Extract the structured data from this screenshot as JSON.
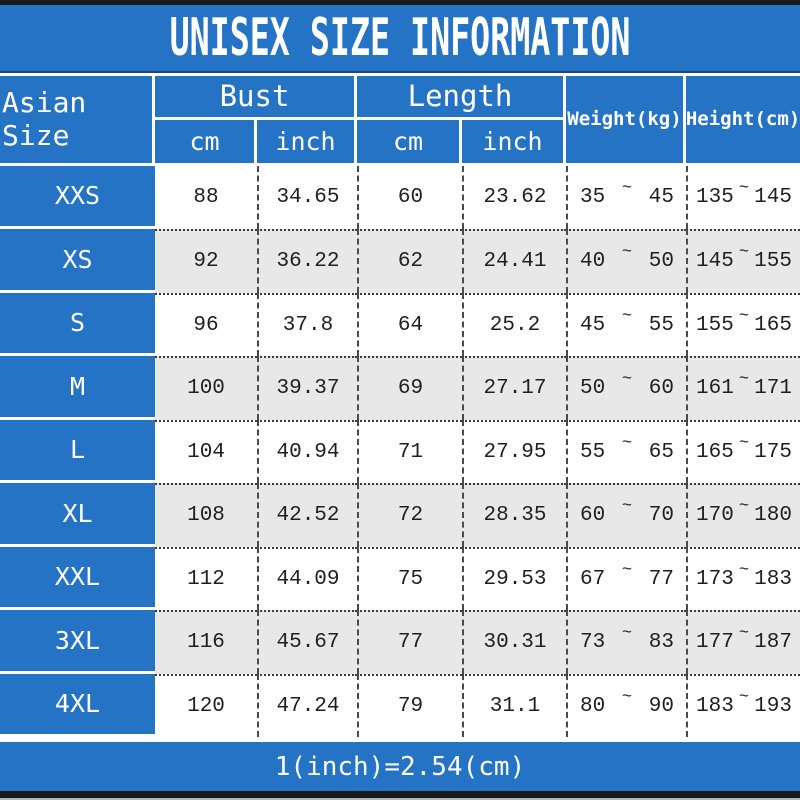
{
  "page": {
    "title": "UNISEX SIZE INFORMATION",
    "footer_note": "1(inch)=2.54(cm)",
    "tilde": "~"
  },
  "header": {
    "asian_size": "Asian Size",
    "bust": "Bust",
    "length": "Length",
    "bust_cm": "cm",
    "bust_inch": "inch",
    "length_cm": "cm",
    "length_inch": "inch",
    "weight": "Weight(kg)",
    "height": "Height(cm)"
  },
  "chart_data": {
    "type": "table",
    "title": "UNISEX SIZE INFORMATION",
    "columns": [
      "Asian Size",
      "Bust cm",
      "Bust inch",
      "Length cm",
      "Length inch",
      "Weight(kg) min",
      "Weight(kg) max",
      "Height(cm) min",
      "Height(cm) max"
    ],
    "rows": [
      [
        "XXS",
        "88",
        "34.65",
        "60",
        "23.62",
        "35",
        "45",
        "135",
        "145"
      ],
      [
        "XS",
        "92",
        "36.22",
        "62",
        "24.41",
        "40",
        "50",
        "145",
        "155"
      ],
      [
        "S",
        "96",
        "37.8",
        "64",
        "25.2",
        "45",
        "55",
        "155",
        "165"
      ],
      [
        "M",
        "100",
        "39.37",
        "69",
        "27.17",
        "50",
        "60",
        "161",
        "171"
      ],
      [
        "L",
        "104",
        "40.94",
        "71",
        "27.95",
        "55",
        "65",
        "165",
        "175"
      ],
      [
        "XL",
        "108",
        "42.52",
        "72",
        "28.35",
        "60",
        "70",
        "170",
        "180"
      ],
      [
        "XXL",
        "112",
        "44.09",
        "75",
        "29.53",
        "67",
        "77",
        "173",
        "183"
      ],
      [
        "3XL",
        "116",
        "45.67",
        "77",
        "30.31",
        "73",
        "83",
        "177",
        "187"
      ],
      [
        "4XL",
        "120",
        "47.24",
        "79",
        "31.1",
        "80",
        "90",
        "183",
        "193"
      ]
    ],
    "footer": "1(inch)=2.54(cm)"
  },
  "colors": {
    "blue": "#2573c5",
    "alt_row": "#e8e8e8",
    "bar_black": "#1a1a1a",
    "text": "#1f1f1f"
  }
}
